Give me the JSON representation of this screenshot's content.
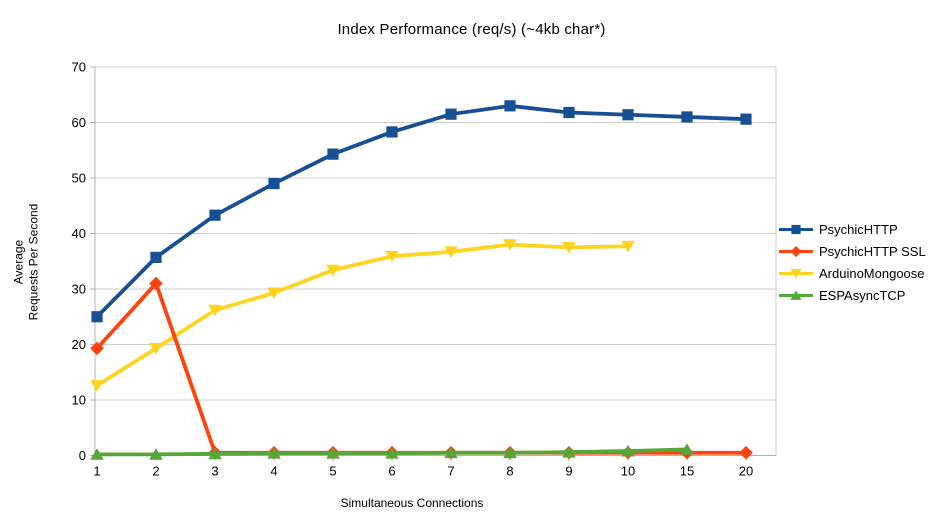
{
  "page": {
    "background": "#ffffff"
  },
  "chart_data": {
    "type": "line",
    "title": "Index Performance (req/s) (~4kb char*)",
    "xlabel": "Simultaneous Connections",
    "ylabel": "Average Requests Per Second",
    "ylabel_lines": [
      "Average",
      "Requests Per Second"
    ],
    "categories": [
      "1",
      "2",
      "3",
      "4",
      "5",
      "6",
      "7",
      "8",
      "9",
      "10",
      "15",
      "20"
    ],
    "yticks": [
      0,
      10,
      20,
      30,
      40,
      50,
      60,
      70
    ],
    "ylim": [
      0,
      70
    ],
    "ytick_step": 10,
    "grid": true,
    "legend_position": "right",
    "grid_color": "#cccccc",
    "axis_color": "#b3b3b3",
    "series": [
      {
        "name": "PsychicHTTP",
        "marker": "square",
        "color": "#164f94",
        "values": [
          25,
          35.7,
          43.3,
          49,
          54.3,
          58.3,
          61.5,
          63,
          61.8,
          61.4,
          61,
          60.6
        ]
      },
      {
        "name": "PsychicHTTP SSL",
        "marker": "diamond",
        "color": "#ff420e",
        "values": [
          19.3,
          31,
          0.5,
          0.5,
          0.5,
          0.5,
          0.5,
          0.5,
          0.5,
          0.5,
          0.5,
          0.5
        ]
      },
      {
        "name": "ArduinoMongoose",
        "marker": "triangle-down",
        "color": "#ffd320",
        "values": [
          12.6,
          19.3,
          26.2,
          29.3,
          33.4,
          35.9,
          36.7,
          38,
          37.5,
          37.7
        ]
      },
      {
        "name": "ESPAsyncTCP",
        "marker": "triangle-up",
        "color": "#57a639",
        "values": [
          0.2,
          0.2,
          0.3,
          0.4,
          0.4,
          0.4,
          0.5,
          0.5,
          0.6,
          0.8,
          1.1
        ]
      }
    ]
  }
}
